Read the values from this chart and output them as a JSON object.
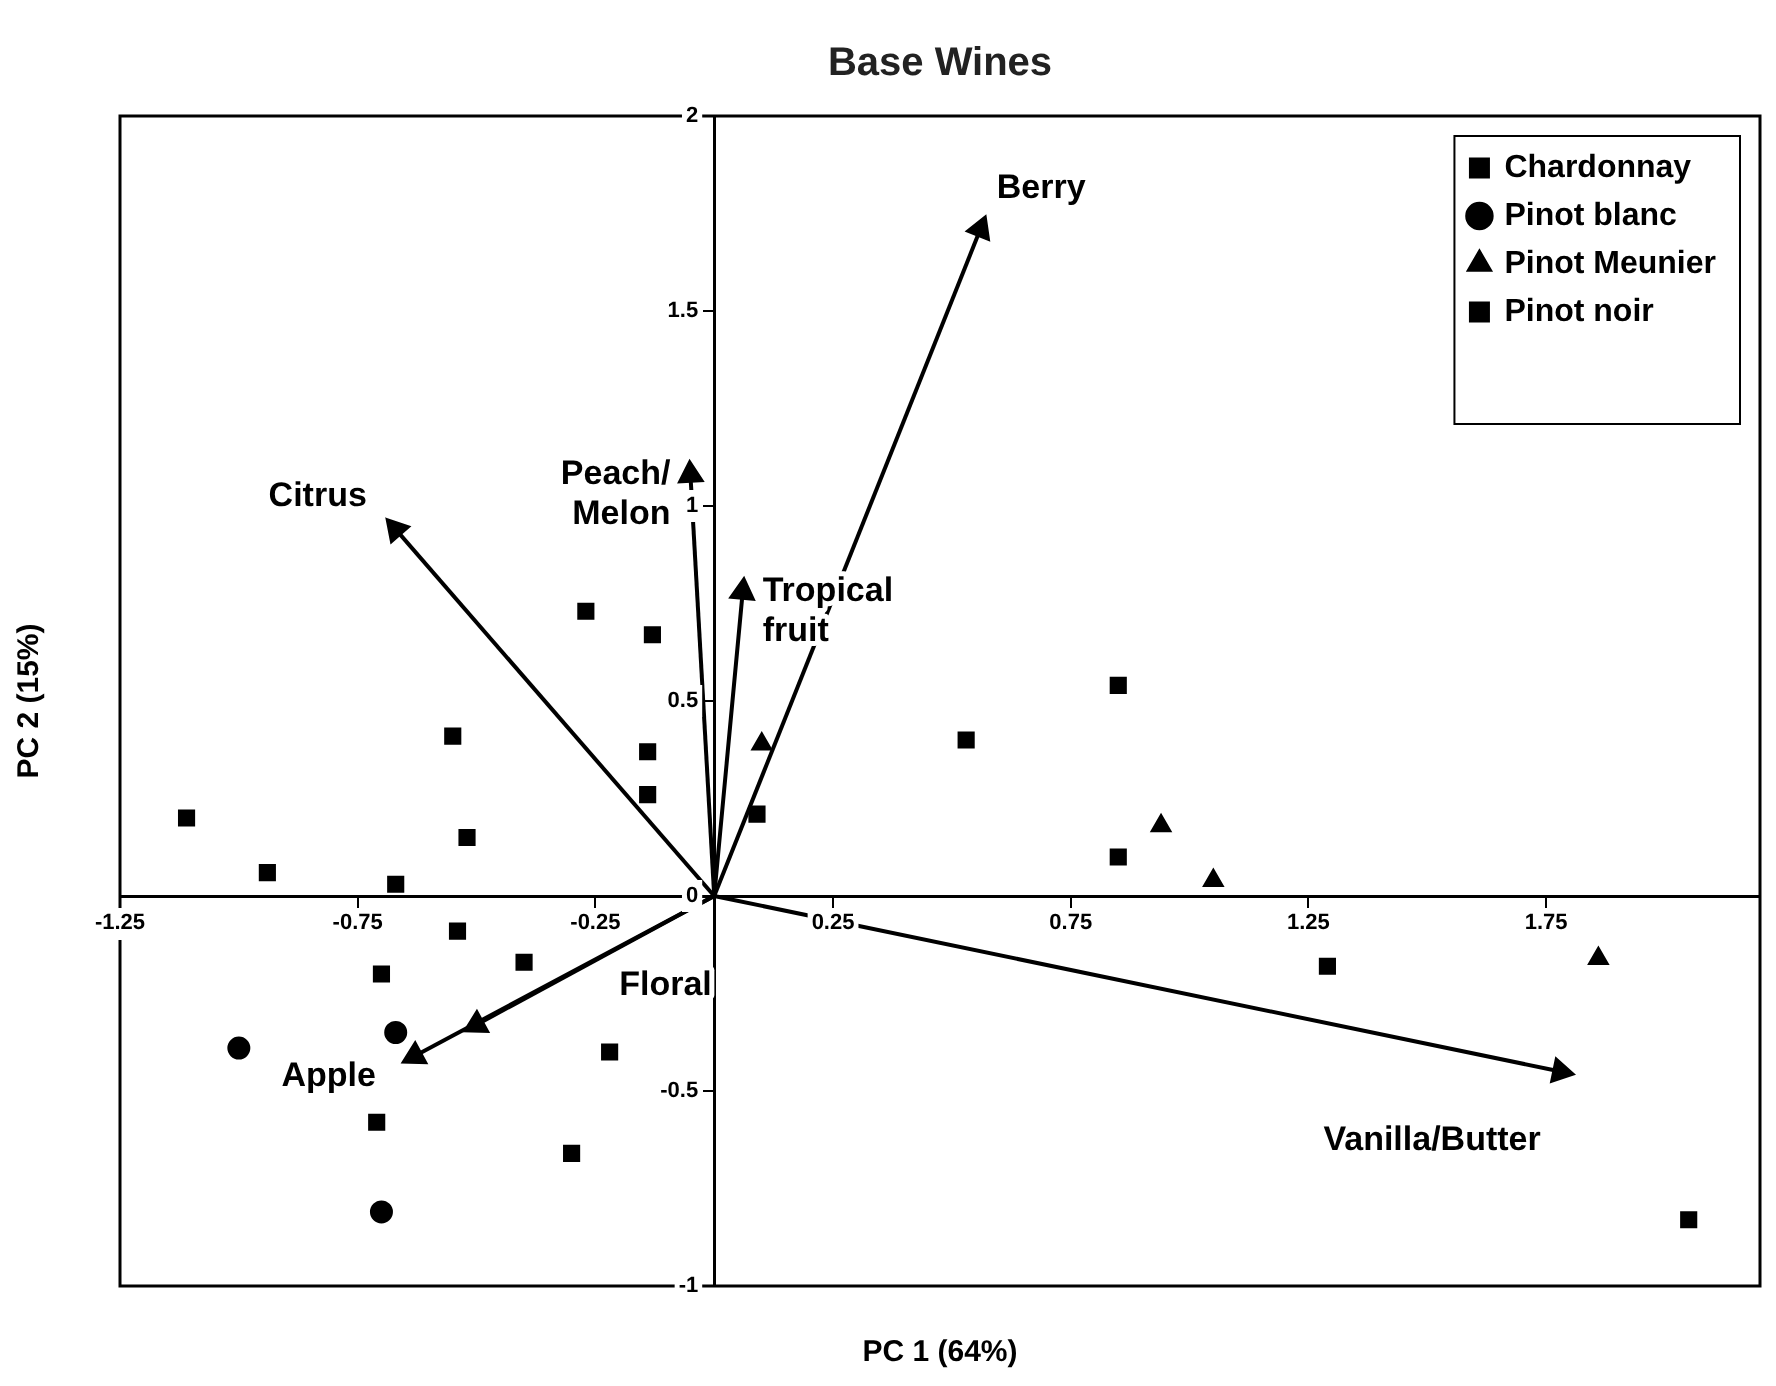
{
  "chart_data": {
    "type": "scatter",
    "title": "Base Wines",
    "xlabel": "PC 1 (64%)",
    "ylabel": "PC 2 (15%)",
    "xlim": [
      -1.25,
      2.2
    ],
    "ylim": [
      -1,
      2
    ],
    "xticks": [
      -1.25,
      -0.75,
      -0.25,
      0.25,
      0.75,
      1.25,
      1.75
    ],
    "yticks": [
      -1,
      -0.5,
      0,
      0.5,
      1,
      1.5,
      2
    ],
    "grid": false,
    "legend": "top right",
    "series": [
      {
        "name": "Chardonnay",
        "type": "scatter",
        "marker": "square",
        "color": "#000000",
        "x": [
          -1.11,
          -0.94,
          -0.67,
          -0.55,
          -0.52,
          -0.14,
          -0.14,
          -0.54,
          -0.7,
          -0.71,
          -0.3,
          0.09
        ],
        "values": [
          0.2,
          0.06,
          0.03,
          0.41,
          0.15,
          0.37,
          0.26,
          -0.09,
          -0.2,
          -0.58,
          -0.66,
          0.21
        ]
      },
      {
        "name": "Pinot blanc",
        "type": "scatter",
        "marker": "circle",
        "color": "#000000",
        "x": [
          -1.0,
          -0.67,
          -0.7
        ],
        "values": [
          -0.39,
          -0.35,
          -0.81
        ]
      },
      {
        "name": "Pinot Meunier",
        "type": "scatter",
        "marker": "triangle",
        "color": "#000000",
        "x": [
          0.1,
          0.94,
          1.05,
          1.86
        ],
        "values": [
          0.39,
          0.18,
          0.04,
          -0.16
        ]
      },
      {
        "name": "Pinot noir",
        "type": "scatter",
        "marker": "square",
        "color": "#000000",
        "x": [
          -0.27,
          -0.13,
          0.85,
          0.53,
          0.85,
          1.29,
          2.05,
          -0.4,
          -0.22
        ],
        "values": [
          0.73,
          0.67,
          0.54,
          0.4,
          0.1,
          -0.18,
          -0.83,
          -0.17,
          -0.4
        ]
      },
      {
        "name": "Citrus",
        "type": "line",
        "marker": "triangle",
        "color": "#000000",
        "x": [
          0,
          -0.67
        ],
        "values": [
          0,
          0.94
        ]
      },
      {
        "name": "Peach/ Melon",
        "type": "line",
        "marker": "triangle",
        "color": "#000000",
        "x": [
          0,
          -0.05
        ],
        "values": [
          0,
          1.08
        ]
      },
      {
        "name": "Tropical fruit",
        "type": "line",
        "marker": "triangle",
        "color": "#000000",
        "x": [
          0,
          0.06
        ],
        "values": [
          0,
          0.78
        ]
      },
      {
        "name": "Berry",
        "type": "line",
        "marker": "triangle",
        "color": "#000000",
        "x": [
          0,
          0.56
        ],
        "values": [
          0,
          1.71
        ]
      },
      {
        "name": "Vanilla/Butter",
        "type": "line",
        "marker": "triangle",
        "color": "#000000",
        "x": [
          0,
          1.78
        ],
        "values": [
          0,
          -0.45
        ]
      },
      {
        "name": "Apple",
        "type": "line",
        "marker": "triangle",
        "color": "#000000",
        "x": [
          0,
          -0.63
        ],
        "values": [
          0,
          -0.41
        ]
      },
      {
        "name": "Floral",
        "type": "line",
        "marker": "triangle",
        "color": "#000000",
        "x": [
          0,
          -0.5
        ],
        "values": [
          0,
          -0.33
        ]
      }
    ]
  }
}
